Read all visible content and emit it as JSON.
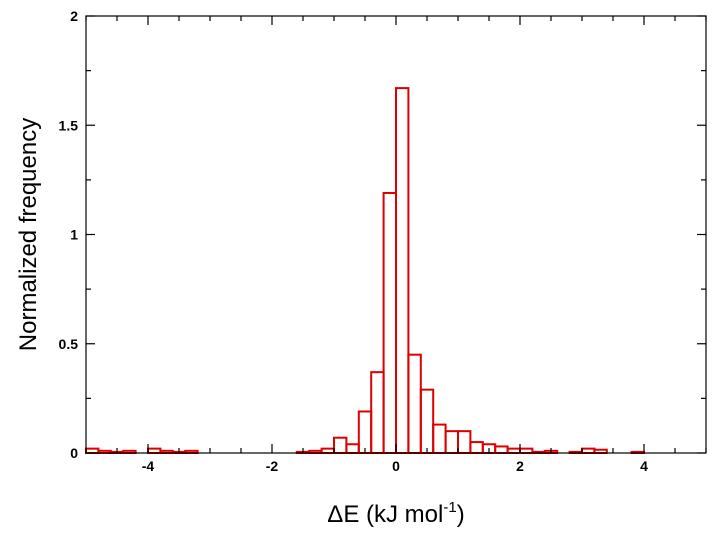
{
  "chart_data": {
    "type": "bar",
    "style": "step-histogram",
    "title": "",
    "xlabel": {
      "symbol": "ΔE",
      "text": " (kJ mol",
      "superscript": "-1",
      "suffix": ")"
    },
    "ylabel": "Normalized frequency",
    "xlim": [
      -5,
      5
    ],
    "ylim": [
      0,
      2
    ],
    "x_ticks": [
      -4,
      -2,
      0,
      2,
      4
    ],
    "x_tick_labels": [
      "-4",
      "-2",
      "0",
      "2",
      "4"
    ],
    "y_ticks": [
      0,
      0.5,
      1,
      1.5,
      2
    ],
    "y_tick_labels": [
      "0",
      "0.5",
      "1",
      "1.5",
      "2"
    ],
    "grid": false,
    "legend": "none",
    "bar_color": "#dd0000",
    "bin_width": 0.2,
    "bin_start": -5,
    "series": [
      {
        "values": [
          0.02,
          0.01,
          0.005,
          0.01,
          0,
          0.02,
          0.01,
          0.005,
          0.01,
          0,
          0,
          0,
          0,
          0,
          0,
          0,
          0,
          0.005,
          0.01,
          0.02,
          0.07,
          0.04,
          0.19,
          0.37,
          1.19,
          1.67,
          0.45,
          0.29,
          0.13,
          0.1,
          0.1,
          0.05,
          0.04,
          0.03,
          0.02,
          0.02,
          0.005,
          0.01,
          0,
          0.005,
          0.02,
          0.015,
          0,
          0,
          0.005,
          0,
          0,
          0,
          0,
          0
        ]
      }
    ]
  }
}
